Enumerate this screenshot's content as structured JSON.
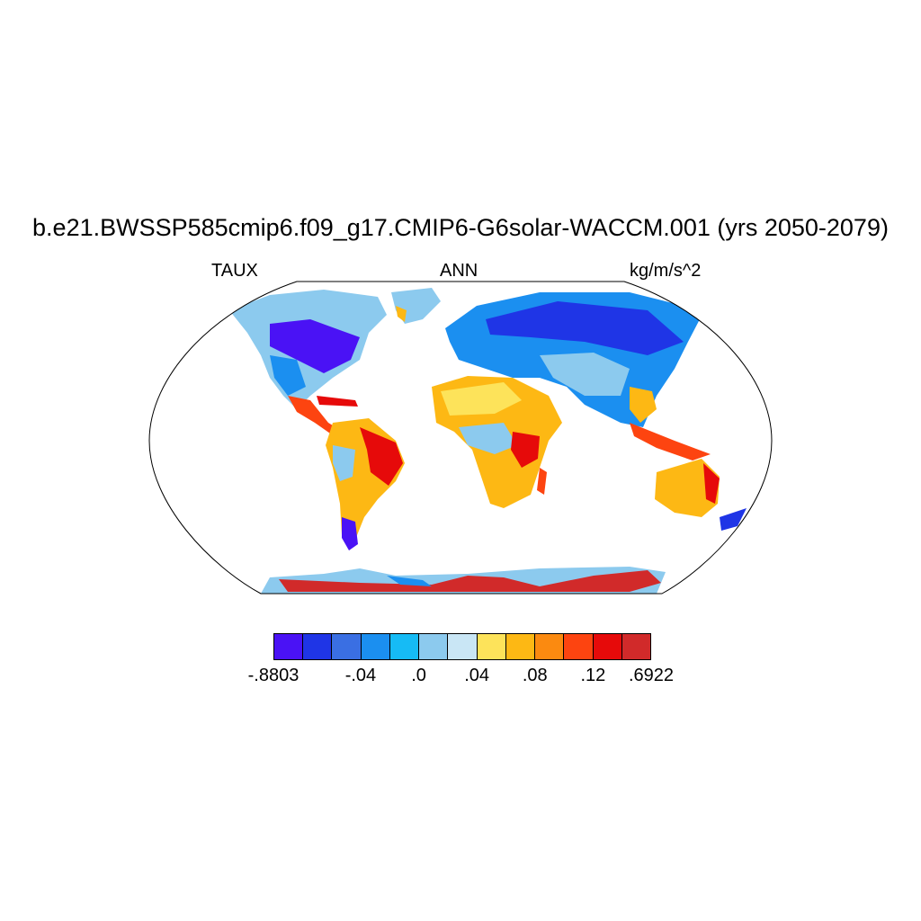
{
  "title": "b.e21.BWSSP585cmip6.f09_g17.CMIP6-G6solar-WACCM.001 (yrs 2050-2079)",
  "variable": "TAUX",
  "period": "ANN",
  "units": "kg/m/s^2",
  "map": {
    "projection": "Robinson",
    "field": "surface zonal wind stress over land",
    "ocean_color": "#ffffff"
  },
  "colorbar": {
    "colors": [
      "#4a12f5",
      "#1f35e6",
      "#3a6fe3",
      "#1b8ff0",
      "#16bbf5",
      "#8ccaee",
      "#c9e6f5",
      "#fde35a",
      "#fdb814",
      "#fb8a10",
      "#fd4410",
      "#e60a0a",
      "#d12a2a"
    ],
    "labels": [
      {
        "text": "-.8803",
        "index": 0
      },
      {
        "text": "-.04",
        "index": 3
      },
      {
        "text": ".0",
        "index": 5
      },
      {
        "text": ".04",
        "index": 7
      },
      {
        "text": ".08",
        "index": 9
      },
      {
        "text": ".12",
        "index": 11
      },
      {
        "text": ".6922",
        "index": 13
      }
    ]
  }
}
